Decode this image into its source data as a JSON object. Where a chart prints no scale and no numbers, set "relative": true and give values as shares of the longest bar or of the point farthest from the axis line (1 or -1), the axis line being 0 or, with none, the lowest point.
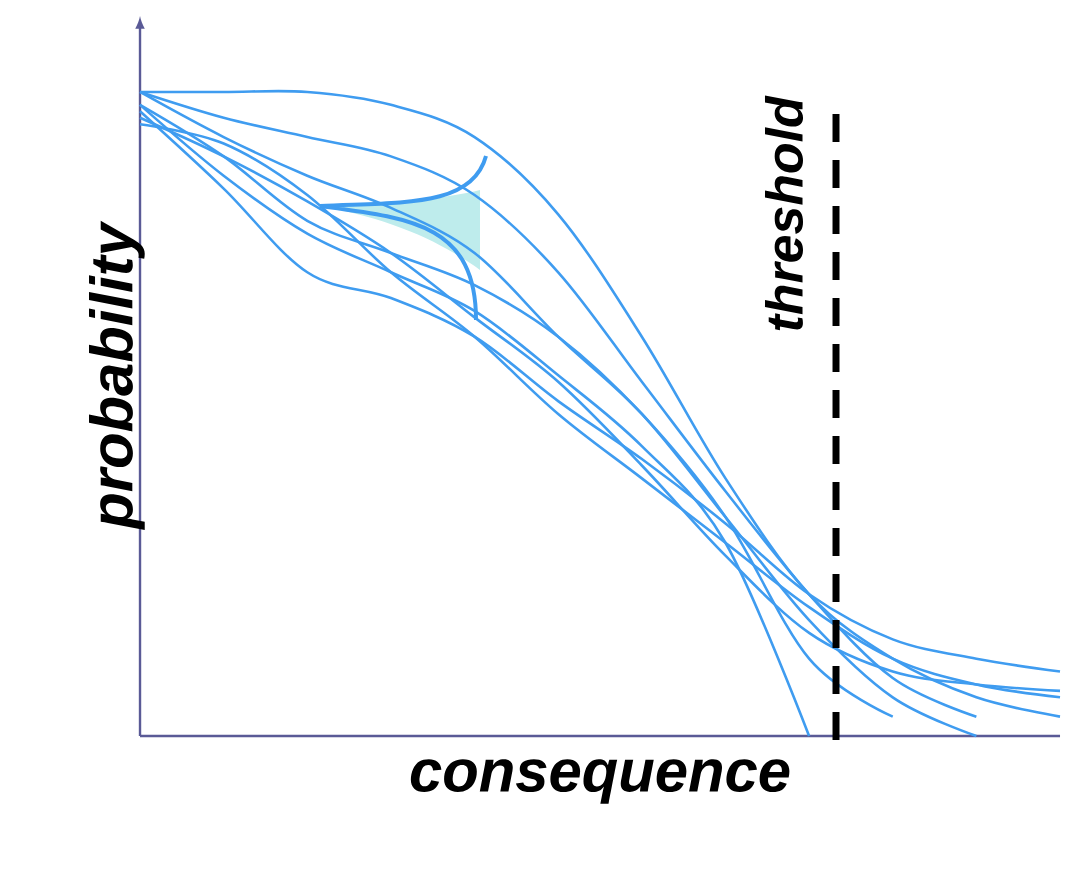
{
  "chart_data": {
    "type": "line",
    "relative": true,
    "xlabel": "consequence",
    "ylabel": "probability",
    "categories": [
      null,
      null,
      null,
      null,
      null,
      null,
      null,
      null,
      null,
      null,
      null,
      null
    ],
    "series": [
      {
        "color": "#3f9cf0",
        "values": [
          1.0,
          1.0,
          1.0,
          0.98,
          0.93,
          0.81,
          0.62,
          0.4,
          0.22,
          0.12,
          0.06,
          0.03
        ]
      },
      {
        "color": "#3f9cf0",
        "values": [
          1.0,
          0.96,
          0.93,
          0.9,
          0.84,
          0.72,
          0.55,
          0.38,
          0.22,
          0.09,
          0.03,
          null
        ]
      },
      {
        "color": "#3f9cf0",
        "values": [
          1.0,
          0.93,
          0.87,
          0.82,
          0.75,
          0.62,
          0.5,
          0.34,
          0.18,
          0.06,
          0.0,
          null
        ]
      },
      {
        "color": "#3f9cf0",
        "values": [
          0.98,
          0.9,
          0.8,
          0.75,
          0.7,
          0.62,
          0.5,
          0.34,
          0.12,
          0.03,
          null,
          null
        ]
      },
      {
        "color": "#3f9cf0",
        "values": [
          0.98,
          0.87,
          0.78,
          0.72,
          0.66,
          0.56,
          0.45,
          0.3,
          0.0,
          null,
          null,
          null
        ]
      },
      {
        "color": "#3f9cf0",
        "values": [
          0.95,
          0.92,
          0.84,
          0.72,
          0.62,
          0.5,
          0.4,
          0.3,
          0.2,
          0.12,
          0.08,
          0.06
        ]
      },
      {
        "color": "#3f9cf0",
        "values": [
          0.96,
          0.9,
          0.83,
          0.75,
          0.65,
          0.55,
          0.42,
          0.28,
          0.16,
          0.1,
          0.08,
          0.07
        ]
      },
      {
        "color": "#3f9cf0",
        "values": [
          0.97,
          0.85,
          0.72,
          0.68,
          0.62,
          0.52,
          0.43,
          0.33,
          0.22,
          0.15,
          0.12,
          0.1
        ]
      }
    ],
    "annotations": [
      "threshold"
    ],
    "marker": "none"
  }
}
